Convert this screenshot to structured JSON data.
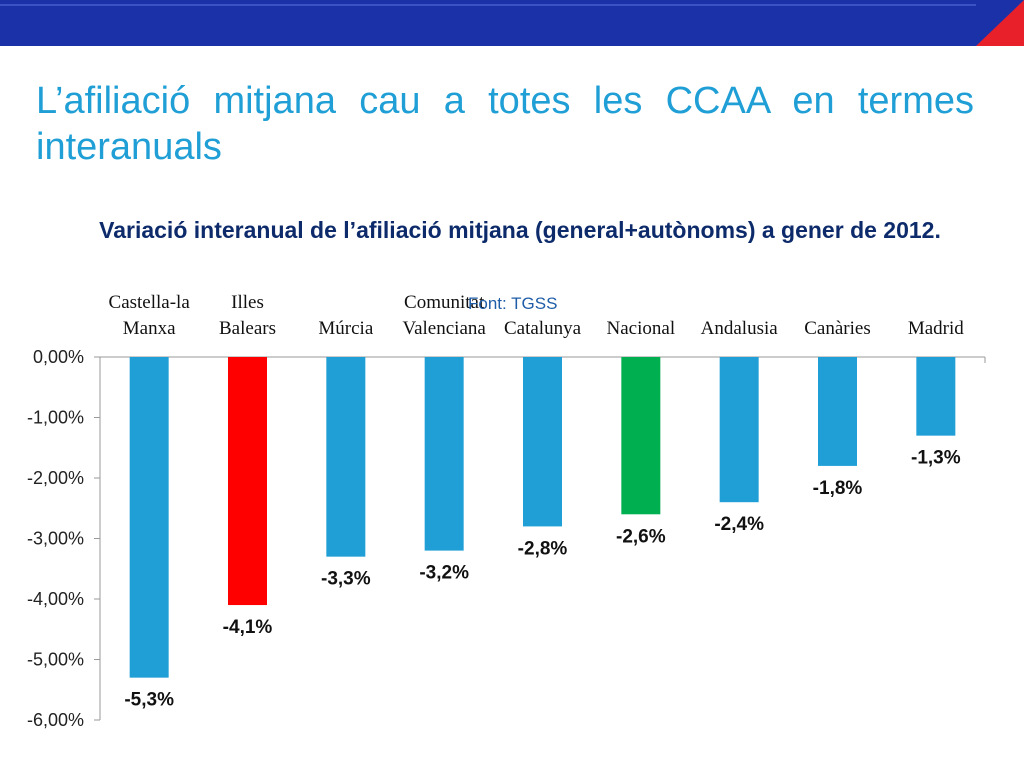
{
  "slide": {
    "title": "L’afiliació mitjana cau a totes les CCAA en termes interanuals"
  },
  "colors": {
    "header_bar": "#1b31a8",
    "header_corner": "#e8202a",
    "title": "#1f9fd5",
    "bar_default": "#1f9fd5",
    "bar_highlight_red": "#ff0000",
    "bar_highlight_green": "#00b050"
  },
  "chart_data": {
    "type": "bar",
    "title": "Variació interanual de l’afiliació mitjana (general+autònoms) a gener de 2012.",
    "source": "Font: TGSS",
    "categories": [
      [
        "Castella-la",
        "Manxa"
      ],
      [
        "Illes",
        "Balears"
      ],
      [
        "Múrcia"
      ],
      [
        "Comunitat",
        "Valenciana"
      ],
      [
        "Catalunya"
      ],
      [
        "Nacional"
      ],
      [
        "Andalusia"
      ],
      [
        "Canàries"
      ],
      [
        "Madrid"
      ]
    ],
    "values": [
      -5.3,
      -4.1,
      -3.3,
      -3.2,
      -2.8,
      -2.6,
      -2.4,
      -1.8,
      -1.3
    ],
    "data_labels": [
      "-5,3%",
      "-4,1%",
      "-3,3%",
      "-3,2%",
      "-2,8%",
      "-2,6%",
      "-2,4%",
      "-1,8%",
      "-1,3%"
    ],
    "bar_colors": [
      "#1f9fd5",
      "#ff0000",
      "#1f9fd5",
      "#1f9fd5",
      "#1f9fd5",
      "#00b050",
      "#1f9fd5",
      "#1f9fd5",
      "#1f9fd5"
    ],
    "ylim": [
      -6,
      0
    ],
    "yticks": [
      0,
      -1,
      -2,
      -3,
      -4,
      -5,
      -6
    ],
    "ytick_labels": [
      "0,00%",
      "-1,00%",
      "-2,00%",
      "-3,00%",
      "-4,00%",
      "-5,00%",
      "-6,00%"
    ],
    "xlabel": "",
    "ylabel": "",
    "grid": false,
    "legend": "none"
  }
}
